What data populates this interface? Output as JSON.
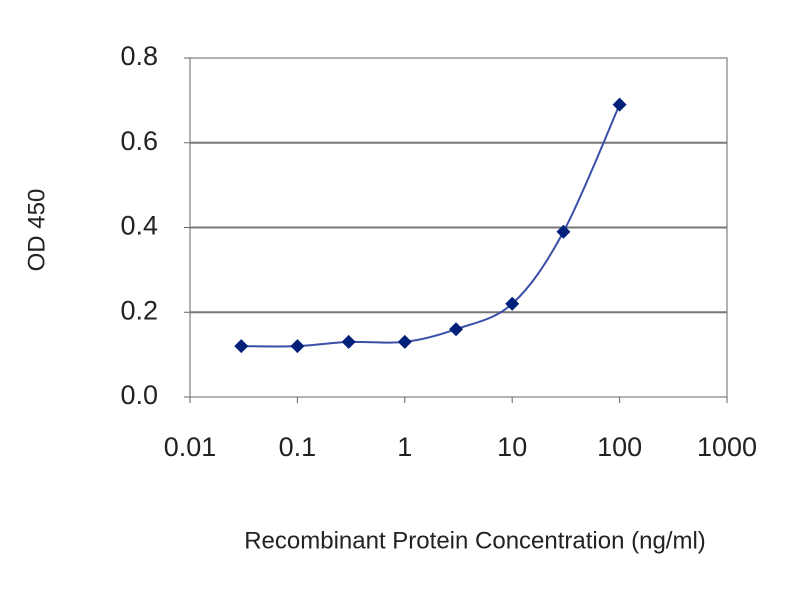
{
  "chart_data": {
    "type": "line",
    "x_label": "Recombinant Protein Concentration (ng/ml)",
    "y_label": "OD 450",
    "x": [
      0.03,
      0.1,
      0.3,
      1,
      3,
      10,
      30,
      100
    ],
    "series": [
      {
        "color": "#00207a",
        "values": [
          0.12,
          0.12,
          0.13,
          0.13,
          0.16,
          0.22,
          0.39,
          0.69
        ]
      }
    ],
    "xlim": [
      0.01,
      1000
    ],
    "xticks": [
      0.01,
      0.1,
      1,
      10,
      100,
      1000
    ],
    "xscale": "log",
    "ylim": [
      0,
      0.8
    ],
    "yticks": [
      {
        "value": 0,
        "label": "0.0"
      },
      0.2,
      0.4,
      0.6,
      0.8
    ],
    "grid": true
  }
}
